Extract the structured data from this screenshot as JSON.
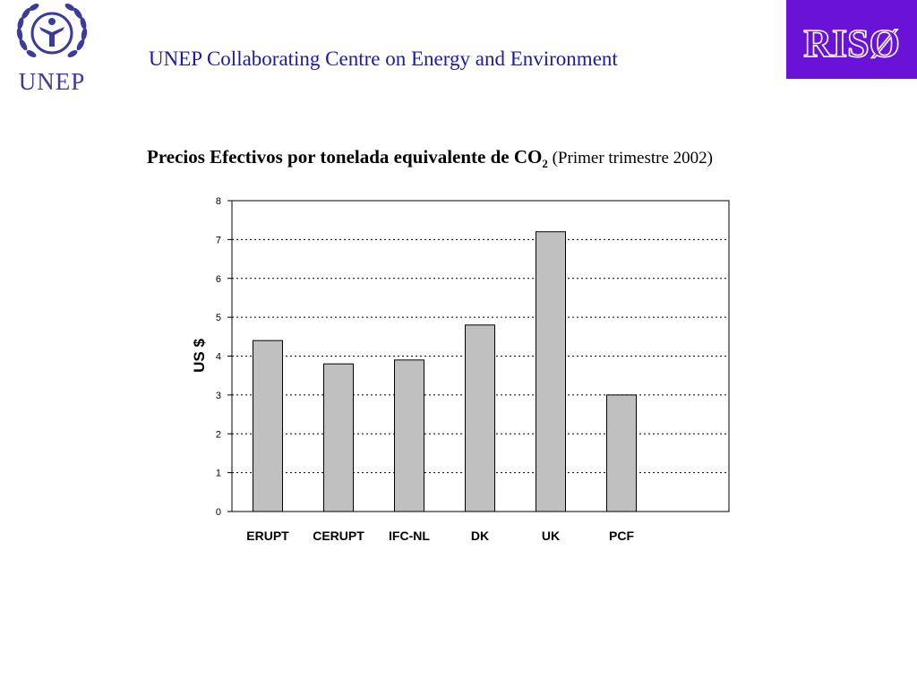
{
  "header": {
    "org_logo_text": "UNEP",
    "title": "UNEP Collaborating Centre on Energy and Environment",
    "partner_logo_text": "RISØ",
    "logo_icon": "un-emblem-icon",
    "partner_logo_color": "#6a12d8",
    "header_color": "#1a1aa6"
  },
  "chart_title": {
    "main": "Precios Efectivos por tonelada equivalente de CO",
    "subscript": "2",
    "parenthetical": " (Primer trimestre 2002)"
  },
  "chart_data": {
    "type": "bar",
    "categories": [
      "ERUPT",
      "CERUPT",
      "IFC-NL",
      "DK",
      "UK",
      "PCF"
    ],
    "values": [
      4.4,
      3.8,
      3.9,
      4.8,
      7.2,
      3.0
    ],
    "xlabel": "",
    "ylabel": "US $",
    "ylim": [
      0,
      8
    ],
    "yticks": [
      0,
      1,
      2,
      3,
      4,
      5,
      6,
      7,
      8
    ],
    "grid": true,
    "legend": "none",
    "bar_color": "#c0c0c0"
  }
}
